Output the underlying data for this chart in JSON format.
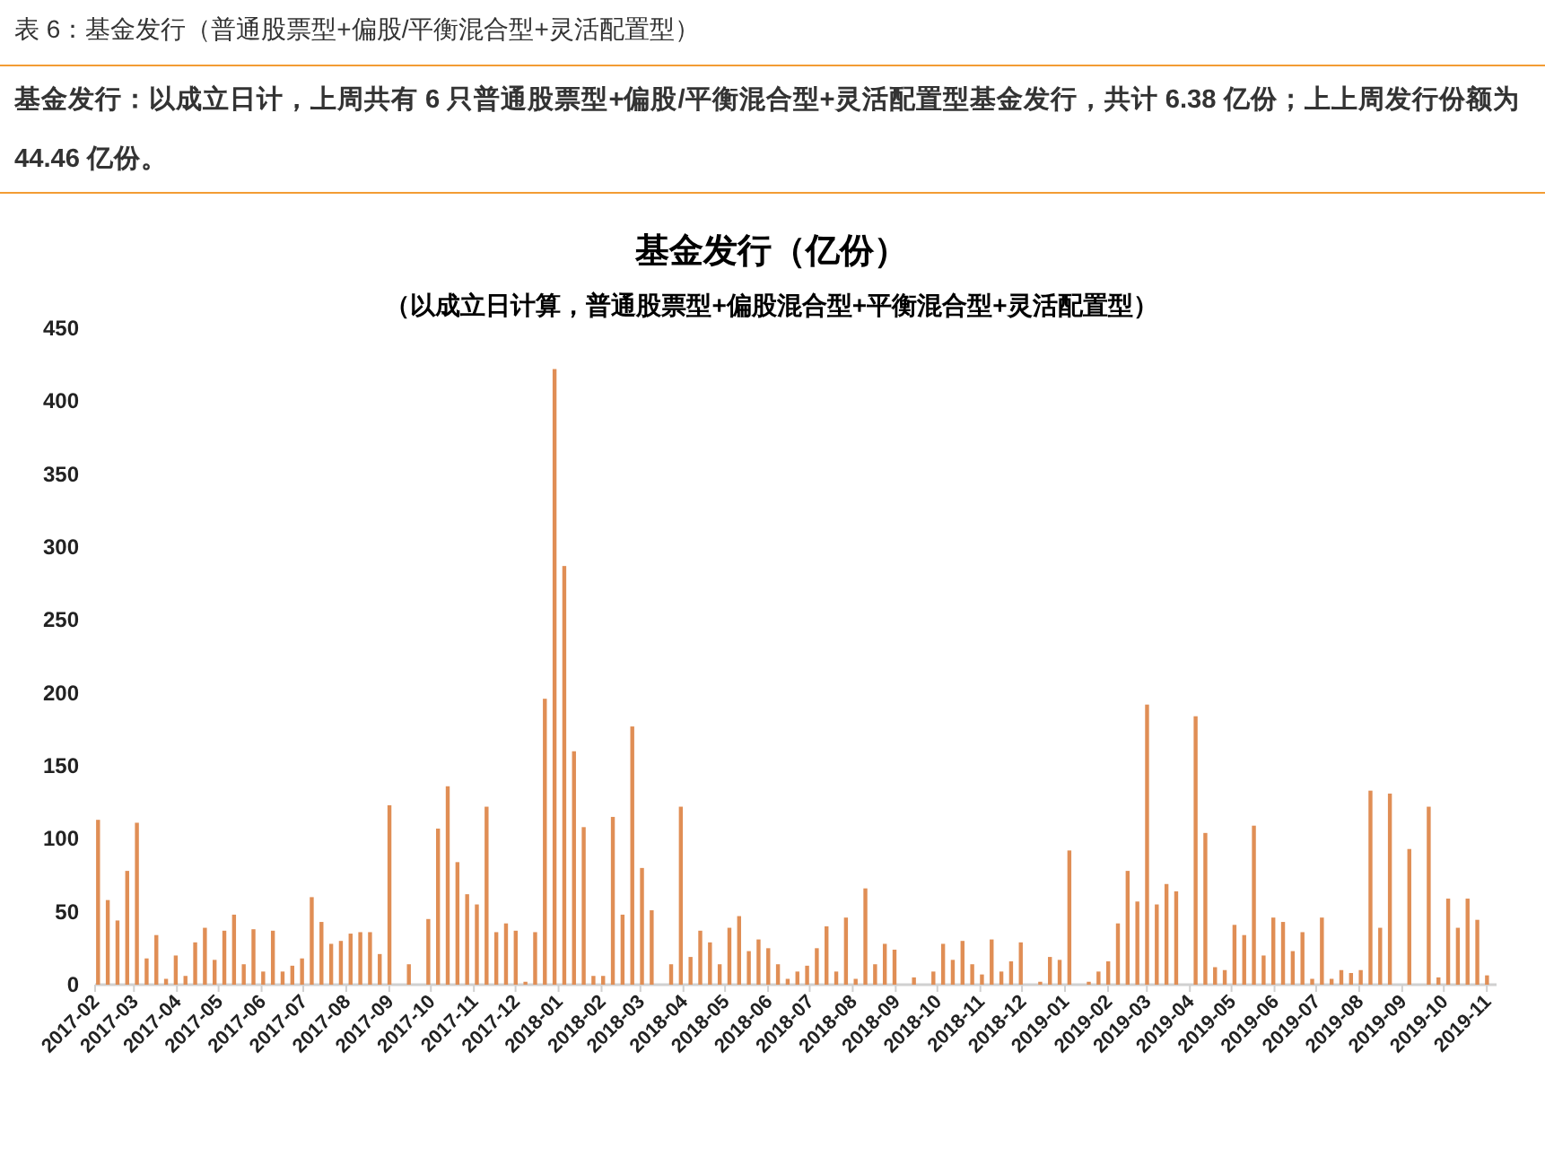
{
  "chart_data": {
    "type": "bar",
    "title": "基金发行（亿份）",
    "subtitle": "（以成立日计算，普通股票型+偏股混合型+平衡混合型+灵活配置型）",
    "annotations": [
      "表 6：基金发行（普通股票型+偏股/平衡混合型+灵活配置型）",
      "基金发行：以成立日计，上周共有 6 只普通股票型+偏股/平衡混合型+灵活配置型基金发行，共计 6.38 亿份；上上周发行份额为 44.46 亿份。"
    ],
    "x": [
      "2017-02-03",
      "2017-02-10",
      "2017-02-17",
      "2017-02-24",
      "2017-03-03",
      "2017-03-10",
      "2017-03-17",
      "2017-03-24",
      "2017-03-31",
      "2017-04-07",
      "2017-04-14",
      "2017-04-21",
      "2017-04-28",
      "2017-05-05",
      "2017-05-12",
      "2017-05-19",
      "2017-05-26",
      "2017-06-02",
      "2017-06-09",
      "2017-06-16",
      "2017-06-23",
      "2017-06-30",
      "2017-07-07",
      "2017-07-14",
      "2017-07-21",
      "2017-07-28",
      "2017-08-04",
      "2017-08-11",
      "2017-08-18",
      "2017-08-25",
      "2017-09-01",
      "2017-09-15",
      "2017-09-29",
      "2017-10-06",
      "2017-10-13",
      "2017-10-20",
      "2017-10-27",
      "2017-11-03",
      "2017-11-10",
      "2017-11-17",
      "2017-11-24",
      "2017-12-01",
      "2017-12-08",
      "2017-12-15",
      "2017-12-22",
      "2017-12-29",
      "2018-01-05",
      "2018-01-12",
      "2018-01-19",
      "2018-01-26",
      "2018-02-02",
      "2018-02-09",
      "2018-02-16",
      "2018-02-23",
      "2018-03-02",
      "2018-03-09",
      "2018-03-23",
      "2018-03-30",
      "2018-04-06",
      "2018-04-13",
      "2018-04-20",
      "2018-04-27",
      "2018-05-04",
      "2018-05-11",
      "2018-05-18",
      "2018-05-25",
      "2018-06-01",
      "2018-06-08",
      "2018-06-15",
      "2018-06-22",
      "2018-06-29",
      "2018-07-06",
      "2018-07-13",
      "2018-07-20",
      "2018-07-27",
      "2018-08-03",
      "2018-08-10",
      "2018-08-17",
      "2018-08-24",
      "2018-08-31",
      "2018-09-14",
      "2018-09-28",
      "2018-10-05",
      "2018-10-12",
      "2018-10-19",
      "2018-10-26",
      "2018-11-02",
      "2018-11-09",
      "2018-11-16",
      "2018-11-23",
      "2018-11-30",
      "2018-12-14",
      "2018-12-21",
      "2018-12-28",
      "2019-01-04",
      "2019-01-18",
      "2019-01-25",
      "2019-02-01",
      "2019-02-08",
      "2019-02-15",
      "2019-02-22",
      "2019-03-01",
      "2019-03-08",
      "2019-03-15",
      "2019-03-22",
      "2019-04-05",
      "2019-04-12",
      "2019-04-19",
      "2019-04-26",
      "2019-05-03",
      "2019-05-10",
      "2019-05-17",
      "2019-05-24",
      "2019-05-31",
      "2019-06-07",
      "2019-06-14",
      "2019-06-21",
      "2019-06-28",
      "2019-07-05",
      "2019-07-12",
      "2019-07-19",
      "2019-07-26",
      "2019-08-02",
      "2019-08-09",
      "2019-08-16",
      "2019-08-23",
      "2019-09-06",
      "2019-09-20",
      "2019-09-27",
      "2019-10-04",
      "2019-10-11",
      "2019-10-18",
      "2019-10-25",
      "2019-11-01"
    ],
    "values": [
      113,
      58,
      44,
      78,
      111,
      18,
      34,
      4,
      20,
      6,
      29,
      39,
      17,
      37,
      48,
      14,
      38,
      9,
      37,
      9,
      13,
      18,
      60,
      43,
      28,
      30,
      35,
      36,
      36,
      21,
      123,
      14,
      45,
      107,
      136,
      84,
      62,
      55,
      122,
      36,
      42,
      37,
      2,
      36,
      196,
      422,
      287,
      160,
      108,
      6,
      6,
      115,
      48,
      177,
      80,
      51,
      14,
      122,
      19,
      37,
      29,
      14,
      39,
      47,
      23,
      31,
      25,
      14,
      4,
      9,
      13,
      25,
      40,
      9,
      46,
      4,
      66,
      14,
      28,
      24,
      5,
      9,
      28,
      17,
      30,
      14,
      7,
      31,
      9,
      16,
      29,
      2,
      19,
      17,
      92,
      2,
      9,
      16,
      42,
      78,
      57,
      192,
      55,
      69,
      64,
      184,
      104,
      12,
      10,
      41,
      34,
      109,
      20,
      46,
      43,
      23,
      36,
      4,
      46,
      4,
      10,
      8,
      10,
      133,
      39,
      131,
      93,
      122,
      5,
      59,
      39,
      59,
      44.46,
      6.38
    ],
    "color": "#e08e55",
    "xlim": [
      "2017-02-01",
      "2019-11-08"
    ],
    "xticks": [
      "2017-02",
      "2017-03",
      "2017-04",
      "2017-05",
      "2017-06",
      "2017-07",
      "2017-08",
      "2017-09",
      "2017-10",
      "2017-11",
      "2017-12",
      "2018-01",
      "2018-02",
      "2018-03",
      "2018-04",
      "2018-05",
      "2018-06",
      "2018-07",
      "2018-08",
      "2018-09",
      "2018-10",
      "2018-11",
      "2018-12",
      "2019-01",
      "2019-02",
      "2019-03",
      "2019-04",
      "2019-05",
      "2019-06",
      "2019-07",
      "2019-08",
      "2019-09",
      "2019-10",
      "2019-11"
    ],
    "ylim": [
      0,
      450
    ],
    "yticks": [
      0,
      50,
      100,
      150,
      200,
      250,
      300,
      350,
      400,
      450
    ]
  }
}
